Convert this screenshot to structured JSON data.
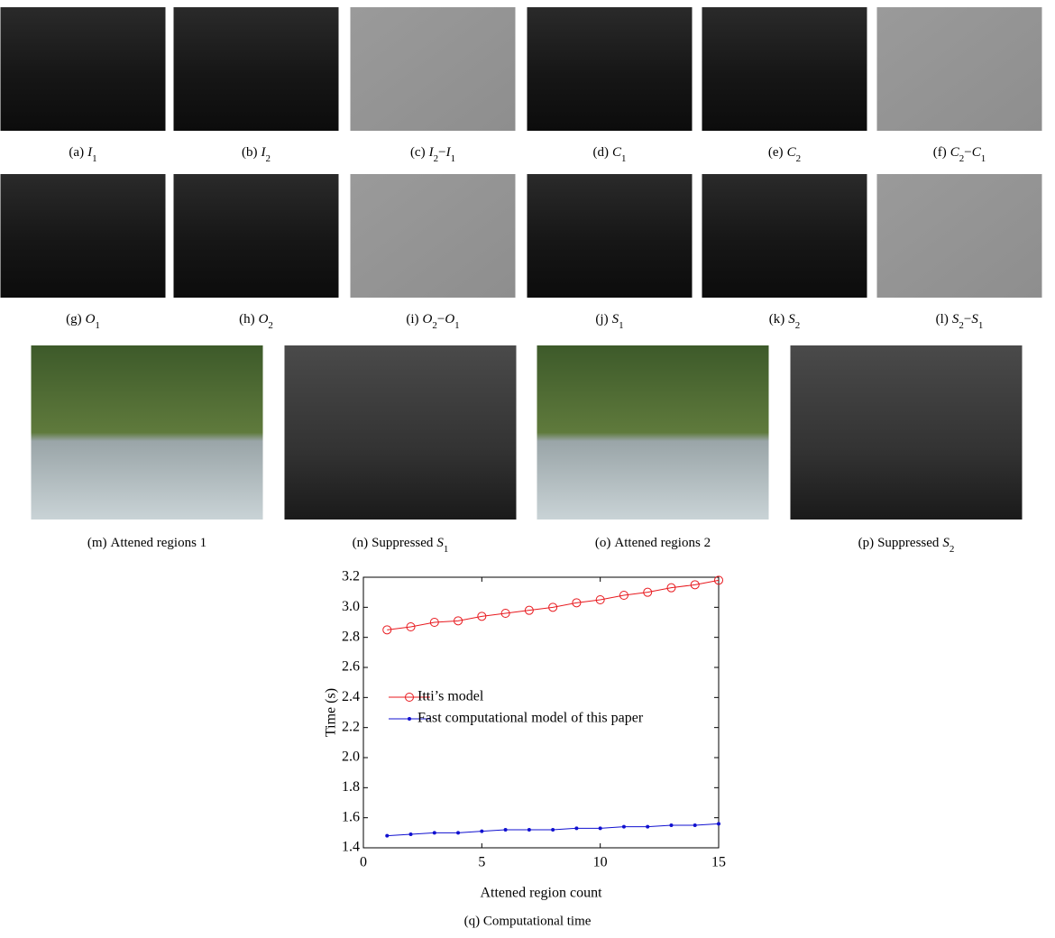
{
  "panels": [
    {
      "label": "(a)",
      "math": [
        [
          "I",
          "1"
        ]
      ]
    },
    {
      "label": "(b)",
      "math": [
        [
          "I",
          "2"
        ]
      ]
    },
    {
      "label": "(c)",
      "math": [
        [
          "I",
          "2"
        ],
        [
          "I",
          "1"
        ]
      ],
      "op": "−"
    },
    {
      "label": "(d)",
      "math": [
        [
          "C",
          "1"
        ]
      ]
    },
    {
      "label": "(e)",
      "math": [
        [
          "C",
          "2"
        ]
      ]
    },
    {
      "label": "(f)",
      "math": [
        [
          "C",
          "2"
        ],
        [
          "C",
          "1"
        ]
      ],
      "op": "−"
    },
    {
      "label": "(g)",
      "math": [
        [
          "O",
          "1"
        ]
      ]
    },
    {
      "label": "(h)",
      "math": [
        [
          "O",
          "2"
        ]
      ]
    },
    {
      "label": "(i)",
      "math": [
        [
          "O",
          "2"
        ],
        [
          "O",
          "1"
        ]
      ],
      "op": "−"
    },
    {
      "label": "(j)",
      "math": [
        [
          "S",
          "1"
        ]
      ]
    },
    {
      "label": "(k)",
      "math": [
        [
          "S",
          "2"
        ]
      ]
    },
    {
      "label": "(l)",
      "math": [
        [
          "S",
          "2"
        ],
        [
          "S",
          "1"
        ]
      ],
      "op": "−"
    },
    {
      "label": "(m)",
      "text": "Attened regions 1"
    },
    {
      "label": "(n)",
      "text": "Suppressed",
      "math": [
        [
          "S",
          "1"
        ]
      ]
    },
    {
      "label": "(o)",
      "text": "Attened regions 2"
    },
    {
      "label": "(p)",
      "text": "Suppressed",
      "math": [
        [
          "S",
          "2"
        ]
      ]
    }
  ],
  "chart_data": {
    "type": "line",
    "caption": "(q) Computational time",
    "xlabel": "Attened region count",
    "ylabel": "Time (s)",
    "x": [
      1,
      2,
      3,
      4,
      5,
      6,
      7,
      8,
      9,
      10,
      11,
      12,
      13,
      14,
      15
    ],
    "series": [
      {
        "name": "Itti’s model",
        "color": "#e8191e",
        "marker": "o",
        "values": [
          2.85,
          2.87,
          2.9,
          2.91,
          2.94,
          2.96,
          2.98,
          3.0,
          3.03,
          3.05,
          3.08,
          3.1,
          3.13,
          3.15,
          3.18
        ]
      },
      {
        "name": "Fast computational model of this paper",
        "color": "#1010d0",
        "marker": ".",
        "values": [
          1.48,
          1.49,
          1.5,
          1.5,
          1.51,
          1.52,
          1.52,
          1.52,
          1.53,
          1.53,
          1.54,
          1.54,
          1.55,
          1.55,
          1.56
        ]
      }
    ],
    "xlim": [
      0,
      15
    ],
    "xticks": [
      0,
      5,
      10,
      15
    ],
    "ylim": [
      1.4,
      3.2
    ],
    "yticks": [
      1.4,
      1.6,
      1.8,
      {
        "value": 2,
        "label": "2.0"
      },
      2.2,
      2.4,
      2.6,
      2.8,
      {
        "value": 3,
        "label": "3.0"
      },
      3.2
    ],
    "legend": "center-left"
  }
}
